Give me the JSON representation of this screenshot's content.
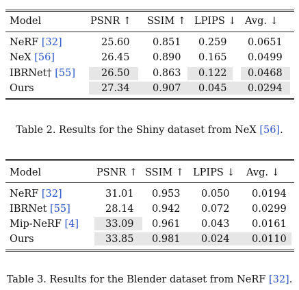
{
  "table2": {
    "header": {
      "model": "Model",
      "psnr": "PSNR ↑",
      "ssim": "SSIM ↑",
      "lpips": "LPIPS ↓",
      "avg": "Avg. ↓"
    },
    "rows": [
      {
        "name": "NeRF ",
        "cite": "[32]",
        "psnr": "25.60",
        "ssim": "0.851",
        "lpips": "0.259",
        "avg": "0.0651"
      },
      {
        "name": "NeX ",
        "cite": "[56]",
        "psnr": "26.45",
        "ssim": "0.890",
        "lpips": "0.165",
        "avg": "0.0499"
      },
      {
        "name": "IBRNet† ",
        "cite": "[55]",
        "psnr": "26.50",
        "ssim": "0.863",
        "lpips": "0.122",
        "avg": "0.0468"
      },
      {
        "name": "Ours",
        "cite": "",
        "psnr": "27.34",
        "ssim": "0.907",
        "lpips": "0.045",
        "avg": "0.0294"
      }
    ],
    "caption": {
      "prefix": "Table 2. Results for the Shiny dataset from NeX ",
      "cite": "[56]",
      "suffix": "."
    }
  },
  "table3": {
    "header": {
      "model": "Model",
      "psnr": "PSNR ↑",
      "ssim": "SSIM ↑",
      "lpips": "LPIPS ↓",
      "avg": "Avg. ↓"
    },
    "rows": [
      {
        "name": "NeRF ",
        "cite": "[32]",
        "psnr": "31.01",
        "ssim": "0.953",
        "lpips": "0.050",
        "avg": "0.0194"
      },
      {
        "name": "IBRNet ",
        "cite": "[55]",
        "psnr": "28.14",
        "ssim": "0.942",
        "lpips": "0.072",
        "avg": "0.0299"
      },
      {
        "name": "Mip-NeRF ",
        "cite": "[4]",
        "psnr": "33.09",
        "ssim": "0.961",
        "lpips": "0.043",
        "avg": "0.0161"
      },
      {
        "name": "Ours",
        "cite": "",
        "psnr": "33.85",
        "ssim": "0.981",
        "lpips": "0.024",
        "avg": "0.0110"
      }
    ],
    "caption": {
      "prefix": "Table 3. Results for the Blender dataset from NeRF ",
      "cite": "[32]",
      "suffix": "."
    }
  }
}
